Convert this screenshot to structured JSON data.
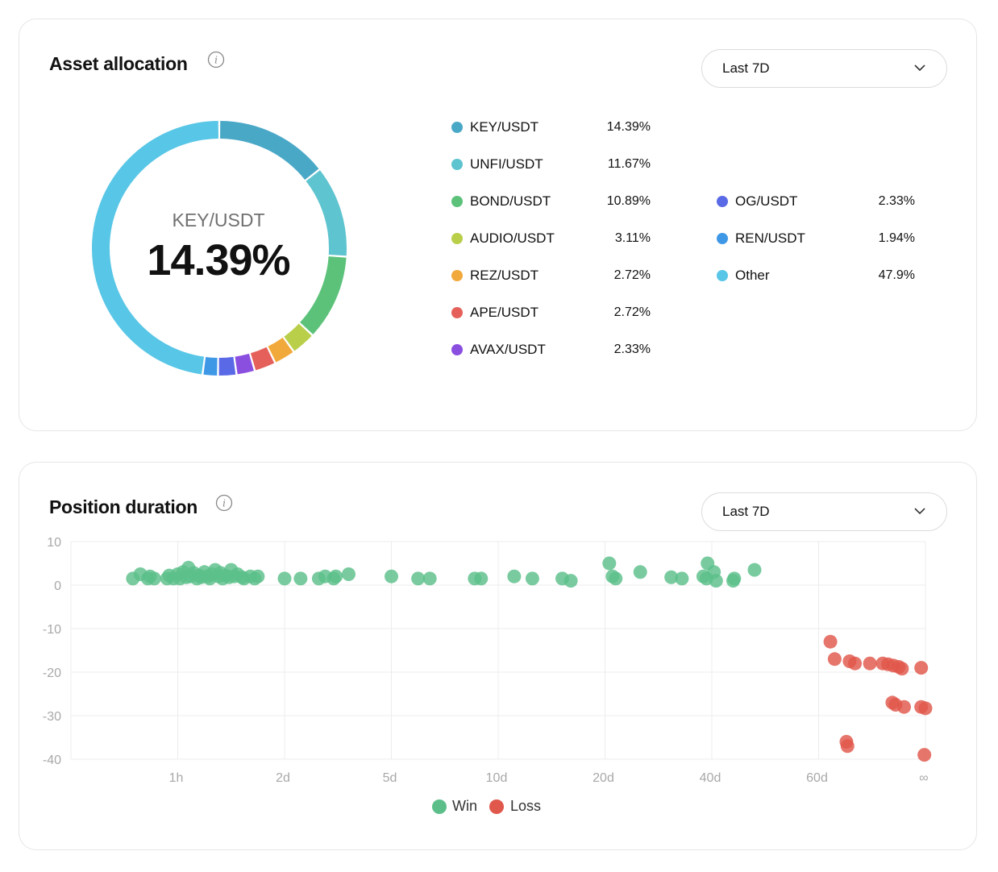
{
  "colors": {
    "win": "#5cbf8a",
    "loss": "#e0574b",
    "grid": "#ececec",
    "axis_text": "#a8a8a8"
  },
  "allocation": {
    "title": "Asset allocation",
    "info_icon": "info-icon",
    "range_select": {
      "value": "Last 7D",
      "icon": "chevron-down-icon"
    },
    "center": {
      "label": "KEY/USDT",
      "value": "14.39%"
    },
    "legend_col1": [
      {
        "name": "KEY/USDT",
        "pct": "14.39%",
        "color": "#4aa8c7"
      },
      {
        "name": "UNFI/USDT",
        "pct": "11.67%",
        "color": "#5ec4cf"
      },
      {
        "name": "BOND/USDT",
        "pct": "10.89%",
        "color": "#5cc27a"
      },
      {
        "name": "AUDIO/USDT",
        "pct": "3.11%",
        "color": "#b9cf4a"
      },
      {
        "name": "REZ/USDT",
        "pct": "2.72%",
        "color": "#f2a93b"
      },
      {
        "name": "APE/USDT",
        "pct": "2.72%",
        "color": "#e5605a"
      },
      {
        "name": "AVAX/USDT",
        "pct": "2.33%",
        "color": "#8b4fe0"
      }
    ],
    "legend_col2": [
      {
        "name": "OG/USDT",
        "pct": "2.33%",
        "color": "#5a6ae6"
      },
      {
        "name": "REN/USDT",
        "pct": "1.94%",
        "color": "#3f98e6"
      },
      {
        "name": "Other",
        "pct": "47.9%",
        "color": "#58c6e6"
      }
    ]
  },
  "duration": {
    "title": "Position duration",
    "info_icon": "info-icon",
    "range_select": {
      "value": "Last 7D",
      "icon": "chevron-down-icon"
    },
    "legend": {
      "win": "Win",
      "loss": "Loss"
    }
  },
  "chart_data": {
    "type": "scatter",
    "title": "Position duration",
    "xlabel": "",
    "ylabel": "",
    "x_ticks": [
      "1h",
      "2d",
      "5d",
      "10d",
      "20d",
      "40d",
      "60d",
      "∞"
    ],
    "y_ticks": [
      10,
      0,
      -10,
      -20,
      -30,
      -40
    ],
    "ylim": [
      -40,
      10
    ],
    "grid": true,
    "legend_position": "bottom",
    "series": [
      {
        "name": "Win",
        "points": [
          [
            0.58,
            1.5
          ],
          [
            0.65,
            2.5
          ],
          [
            0.72,
            1.5
          ],
          [
            0.74,
            2
          ],
          [
            0.78,
            1.5
          ],
          [
            0.9,
            1.5
          ],
          [
            0.92,
            2.2
          ],
          [
            0.96,
            1.5
          ],
          [
            1.0,
            2.5
          ],
          [
            1.02,
            1.5
          ],
          [
            1.05,
            3
          ],
          [
            1.08,
            1.8
          ],
          [
            1.1,
            4
          ],
          [
            1.12,
            2
          ],
          [
            1.15,
            2.8
          ],
          [
            1.18,
            1.5
          ],
          [
            1.2,
            2.2
          ],
          [
            1.22,
            1.8
          ],
          [
            1.25,
            3
          ],
          [
            1.28,
            2
          ],
          [
            1.3,
            1.5
          ],
          [
            1.32,
            2.5
          ],
          [
            1.35,
            3.5
          ],
          [
            1.38,
            2
          ],
          [
            1.4,
            2.8
          ],
          [
            1.42,
            1.5
          ],
          [
            1.45,
            2.2
          ],
          [
            1.48,
            1.8
          ],
          [
            1.5,
            3.5
          ],
          [
            1.53,
            2
          ],
          [
            1.56,
            2.5
          ],
          [
            1.6,
            1.8
          ],
          [
            1.62,
            1.5
          ],
          [
            1.68,
            2
          ],
          [
            1.72,
            1.5
          ],
          [
            1.75,
            2
          ],
          [
            2.0,
            1.5
          ],
          [
            2.15,
            1.5
          ],
          [
            2.32,
            1.5
          ],
          [
            2.38,
            2
          ],
          [
            2.46,
            1.5
          ],
          [
            2.48,
            2
          ],
          [
            2.6,
            2.5
          ],
          [
            3.0,
            2
          ],
          [
            3.25,
            1.5
          ],
          [
            3.36,
            1.5
          ],
          [
            3.78,
            1.5
          ],
          [
            3.84,
            1.5
          ],
          [
            4.15,
            2
          ],
          [
            4.32,
            1.5
          ],
          [
            4.6,
            1.5
          ],
          [
            4.68,
            1
          ],
          [
            5.04,
            5
          ],
          [
            5.07,
            2
          ],
          [
            5.1,
            1.5
          ],
          [
            5.33,
            3
          ],
          [
            5.62,
            1.8
          ],
          [
            5.72,
            1.5
          ],
          [
            5.92,
            2
          ],
          [
            5.96,
            5
          ],
          [
            6.02,
            3
          ],
          [
            5.95,
            1.5
          ],
          [
            6.04,
            1
          ],
          [
            6.2,
            1
          ],
          [
            6.21,
            1.5
          ],
          [
            6.4,
            3.5
          ]
        ]
      },
      {
        "name": "Loss",
        "points": [
          [
            7.11,
            -13
          ],
          [
            7.15,
            -17
          ],
          [
            7.29,
            -17.5
          ],
          [
            7.34,
            -18
          ],
          [
            7.48,
            -18
          ],
          [
            7.6,
            -18
          ],
          [
            7.65,
            -18.2
          ],
          [
            7.7,
            -18.5
          ],
          [
            7.75,
            -18.8
          ],
          [
            7.78,
            -19.2
          ],
          [
            7.96,
            -19
          ],
          [
            7.69,
            -27
          ],
          [
            7.72,
            -27.5
          ],
          [
            7.8,
            -28
          ],
          [
            7.96,
            -28
          ],
          [
            8.0,
            -28.3
          ],
          [
            7.26,
            -36
          ],
          [
            7.27,
            -37
          ],
          [
            7.99,
            -39
          ]
        ]
      }
    ]
  }
}
